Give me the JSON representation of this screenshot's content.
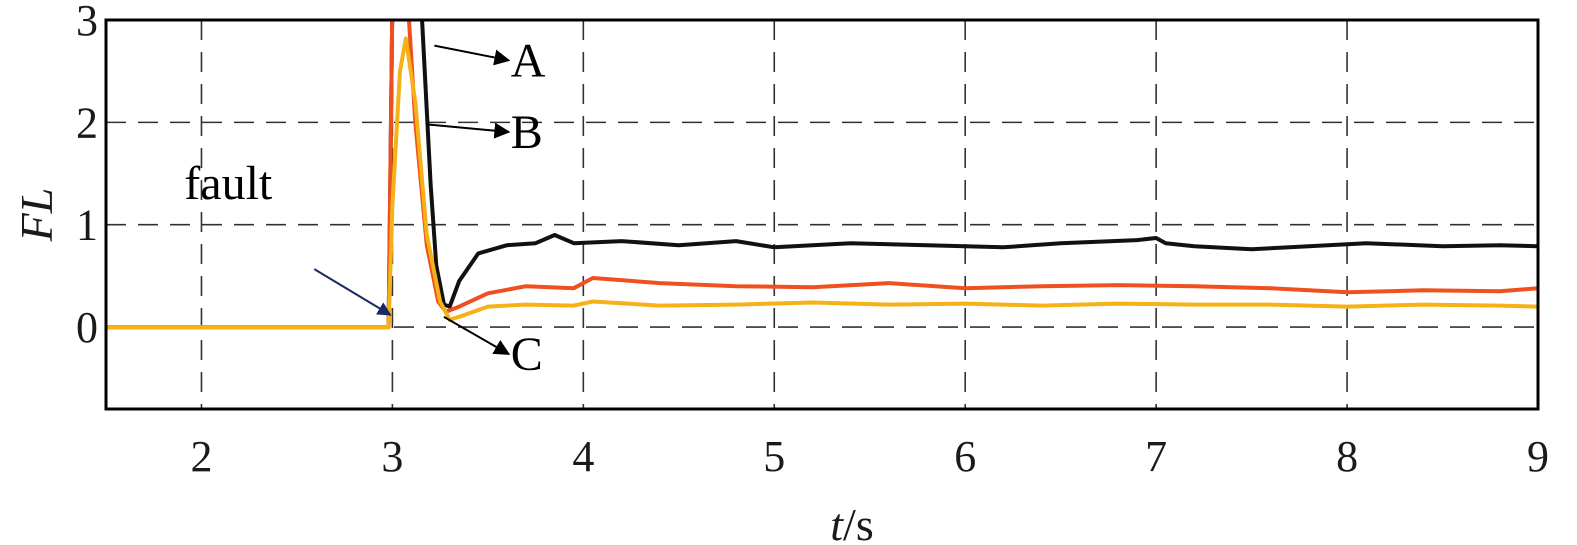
{
  "chart_data": {
    "type": "line",
    "xlabel_italic": "t",
    "xlabel_unit": "/s",
    "ylabel": "FL",
    "xlim": [
      1.5,
      9
    ],
    "ylim": [
      -0.8,
      3
    ],
    "x_ticks": [
      "2",
      "3",
      "4",
      "5",
      "6",
      "7",
      "8",
      "9"
    ],
    "x_tick_values": [
      2,
      3,
      4,
      5,
      6,
      7,
      8,
      9
    ],
    "y_ticks": [
      "0",
      "1",
      "2",
      "3"
    ],
    "y_tick_values": [
      0,
      1,
      2,
      3
    ],
    "grid": true,
    "series": [
      {
        "name": "A",
        "color": "#111111",
        "x": [
          1.5,
          2.0,
          2.5,
          2.98,
          3.0,
          3.15,
          3.2,
          3.23,
          3.27,
          3.3,
          3.35,
          3.45,
          3.6,
          3.75,
          3.85,
          3.95,
          4.2,
          4.5,
          4.8,
          5.0,
          5.4,
          5.8,
          6.2,
          6.5,
          6.9,
          7.0,
          7.05,
          7.2,
          7.5,
          7.8,
          8.1,
          8.5,
          8.8,
          9.0
        ],
        "y": [
          0.0,
          0.0,
          0.0,
          0.0,
          3.2,
          3.2,
          1.4,
          0.6,
          0.22,
          0.2,
          0.45,
          0.72,
          0.8,
          0.82,
          0.9,
          0.82,
          0.84,
          0.8,
          0.84,
          0.78,
          0.82,
          0.8,
          0.78,
          0.82,
          0.85,
          0.87,
          0.82,
          0.79,
          0.76,
          0.79,
          0.82,
          0.79,
          0.8,
          0.79
        ]
      },
      {
        "name": "B",
        "color": "#f0501e",
        "x": [
          1.5,
          2.0,
          2.5,
          2.98,
          3.0,
          3.08,
          3.12,
          3.18,
          3.24,
          3.28,
          3.35,
          3.5,
          3.7,
          3.95,
          4.05,
          4.4,
          4.8,
          5.2,
          5.6,
          6.0,
          6.4,
          6.8,
          7.2,
          7.6,
          8.0,
          8.4,
          8.8,
          9.0
        ],
        "y": [
          0.0,
          0.0,
          0.0,
          0.0,
          3.2,
          3.2,
          2.0,
          0.8,
          0.25,
          0.15,
          0.2,
          0.33,
          0.4,
          0.38,
          0.48,
          0.43,
          0.4,
          0.39,
          0.43,
          0.38,
          0.4,
          0.41,
          0.4,
          0.38,
          0.34,
          0.36,
          0.35,
          0.38
        ]
      },
      {
        "name": "C",
        "color": "#f6b116",
        "x": [
          1.5,
          2.0,
          2.5,
          2.98,
          3.0,
          3.04,
          3.07,
          3.12,
          3.18,
          3.25,
          3.3,
          3.38,
          3.5,
          3.7,
          3.95,
          4.05,
          4.4,
          4.8,
          5.2,
          5.6,
          6.0,
          6.4,
          6.8,
          7.2,
          7.6,
          8.0,
          8.4,
          8.8,
          9.0
        ],
        "y": [
          0.0,
          0.0,
          0.0,
          0.0,
          1.2,
          2.5,
          2.82,
          2.2,
          0.9,
          0.25,
          0.07,
          0.12,
          0.2,
          0.22,
          0.21,
          0.25,
          0.21,
          0.22,
          0.24,
          0.22,
          0.23,
          0.21,
          0.23,
          0.22,
          0.22,
          0.2,
          0.22,
          0.21,
          0.2
        ]
      }
    ],
    "annotations": [
      {
        "text": "fault",
        "text_x": 1.91,
        "text_y": 1.25,
        "target_x": 3.0,
        "target_y": 0.1,
        "color": "#1b2a63"
      },
      {
        "text": "A",
        "text_x": 3.62,
        "text_y": 2.45,
        "target_x": 3.22,
        "target_y": 2.75,
        "color": "#000000"
      },
      {
        "text": "B",
        "text_x": 3.62,
        "text_y": 1.75,
        "target_x": 3.18,
        "target_y": 1.98,
        "color": "#000000"
      },
      {
        "text": "C",
        "text_x": 3.62,
        "text_y": -0.42,
        "target_x": 3.27,
        "target_y": 0.1,
        "color": "#000000"
      }
    ]
  }
}
